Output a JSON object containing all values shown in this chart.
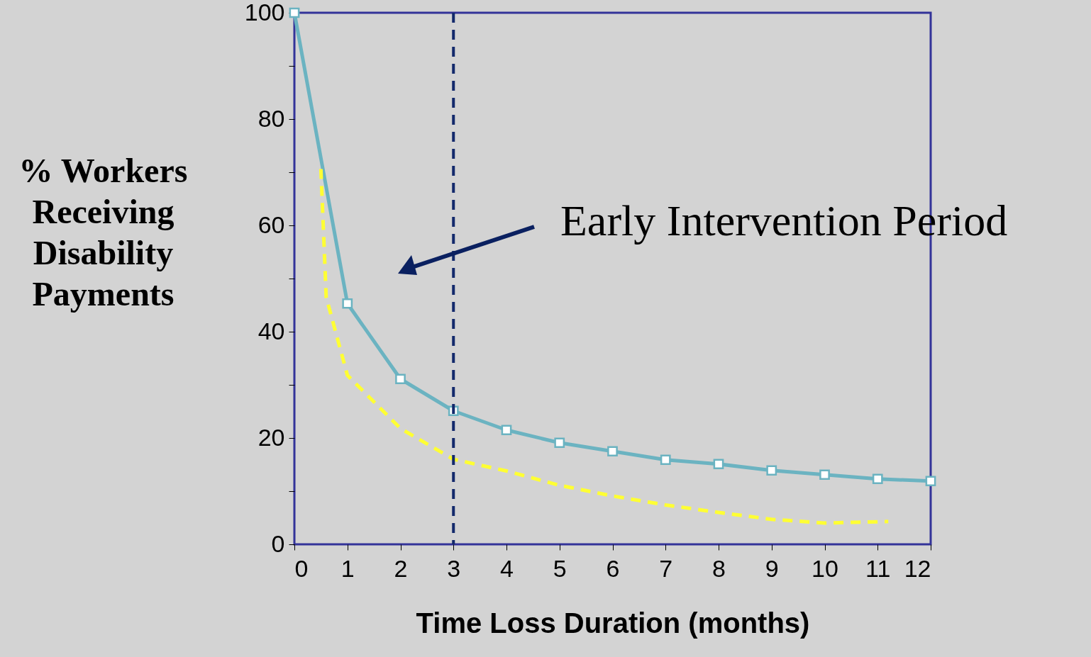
{
  "chart_data": {
    "type": "line",
    "xlabel": "Time Loss Duration (months)",
    "ylabel": "% Workers\nReceiving\nDisability\nPayments",
    "annotations": [
      "Early Intervention Period"
    ],
    "xlim": [
      0,
      12
    ],
    "xticks": [
      0,
      1,
      2,
      3,
      4,
      5,
      6,
      7,
      8,
      9,
      10,
      11,
      12
    ],
    "ylim": [
      0,
      100
    ],
    "yticks": [
      0,
      {
        "value": 10,
        "label": null
      },
      20,
      {
        "value": 30,
        "label": null
      },
      40,
      {
        "value": 50,
        "label": null
      },
      60,
      {
        "value": 70,
        "label": null
      },
      80,
      {
        "value": 90,
        "label": null
      },
      100
    ],
    "grid": false,
    "series": [
      {
        "color": "#6bb3c1",
        "marker": "square",
        "line_style": "solid",
        "x": [
          0,
          1,
          2,
          3,
          4,
          5,
          6,
          7,
          8,
          9,
          10,
          11,
          12
        ],
        "values": [
          100,
          45.3,
          31.1,
          25.1,
          21.5,
          19.1,
          17.5,
          15.9,
          15.1,
          13.9,
          13.1,
          12.3,
          11.9
        ]
      },
      {
        "color": "#ffff33",
        "marker": "none",
        "line_style": "dashed",
        "x": [
          0.5,
          0.6,
          1,
          2,
          3,
          4,
          5,
          6,
          7,
          8,
          9,
          10,
          11.2
        ],
        "values": [
          70.6,
          46.5,
          31.8,
          21.8,
          16,
          13.8,
          11.1,
          9.1,
          7.4,
          6,
          4.7,
          4,
          4.3
        ]
      }
    ],
    "ref_lines": [
      {
        "axis": "x",
        "value": 3,
        "color": "#13296b",
        "line_style": "dashed"
      }
    ]
  }
}
